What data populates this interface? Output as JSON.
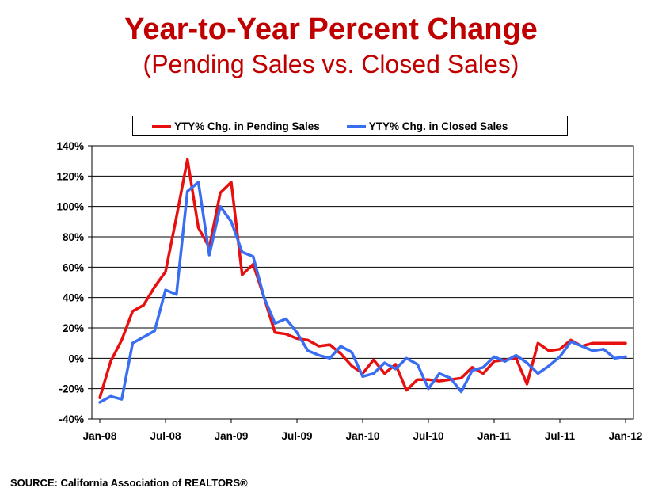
{
  "chart_data": {
    "type": "line",
    "title": "Year-to-Year Percent Change",
    "subtitle": "(Pending Sales vs. Closed Sales)",
    "xlabel": "",
    "ylabel": "",
    "ylim": [
      -40,
      140
    ],
    "yticks": [
      -40,
      -20,
      0,
      20,
      40,
      60,
      80,
      100,
      120,
      140
    ],
    "ytick_labels": [
      "-40%",
      "-20%",
      "0%",
      "20%",
      "40%",
      "60%",
      "80%",
      "100%",
      "120%",
      "140%"
    ],
    "xtick_labels": [
      "Jan-08",
      "Jul-08",
      "Jan-09",
      "Jul-09",
      "Jan-10",
      "Jul-10",
      "Jan-11",
      "Jul-11",
      "Jan-12"
    ],
    "x": [
      "Jan-08",
      "Feb-08",
      "Mar-08",
      "Apr-08",
      "May-08",
      "Jun-08",
      "Jul-08",
      "Aug-08",
      "Sep-08",
      "Oct-08",
      "Nov-08",
      "Dec-08",
      "Jan-09",
      "Feb-09",
      "Mar-09",
      "Apr-09",
      "May-09",
      "Jun-09",
      "Jul-09",
      "Aug-09",
      "Sep-09",
      "Oct-09",
      "Nov-09",
      "Dec-09",
      "Jan-10",
      "Feb-10",
      "Mar-10",
      "Apr-10",
      "May-10",
      "Jun-10",
      "Jul-10",
      "Aug-10",
      "Sep-10",
      "Oct-10",
      "Nov-10",
      "Dec-10",
      "Jan-11",
      "Feb-11",
      "Mar-11",
      "Apr-11",
      "May-11",
      "Jun-11",
      "Jul-11",
      "Aug-11",
      "Sep-11",
      "Oct-11",
      "Nov-11",
      "Dec-11",
      "Jan-12"
    ],
    "grid": true,
    "legend_position": "top",
    "series": [
      {
        "name": "YTY% Chg. in Pending Sales",
        "color": "#e8100f",
        "values": [
          -26,
          -2,
          12,
          31,
          35,
          47,
          57,
          93,
          131,
          86,
          73,
          109,
          116,
          55,
          62,
          40,
          17,
          16,
          13,
          12,
          8,
          9,
          3,
          -5,
          -10,
          -1,
          -10,
          -4,
          -21,
          -14,
          -14,
          -15,
          -14,
          -13,
          -6,
          -10,
          -2,
          -1,
          0,
          -17,
          10,
          5,
          6,
          12,
          8,
          10,
          10,
          10,
          10
        ]
      },
      {
        "name": "YTY% Chg. in Closed Sales",
        "color": "#3a6ef2",
        "values": [
          -29,
          -25,
          -27,
          10,
          14,
          18,
          45,
          42,
          110,
          116,
          68,
          100,
          90,
          70,
          67,
          40,
          23,
          26,
          17,
          5,
          2,
          0,
          8,
          4,
          -12,
          -10,
          -3,
          -7,
          0,
          -4,
          -20,
          -10,
          -13,
          -22,
          -8,
          -6,
          1,
          -2,
          2,
          -3,
          -10,
          -5,
          1,
          11,
          8,
          5,
          6,
          0,
          1
        ]
      }
    ]
  },
  "source": "SOURCE: California Association of REALTORS®"
}
